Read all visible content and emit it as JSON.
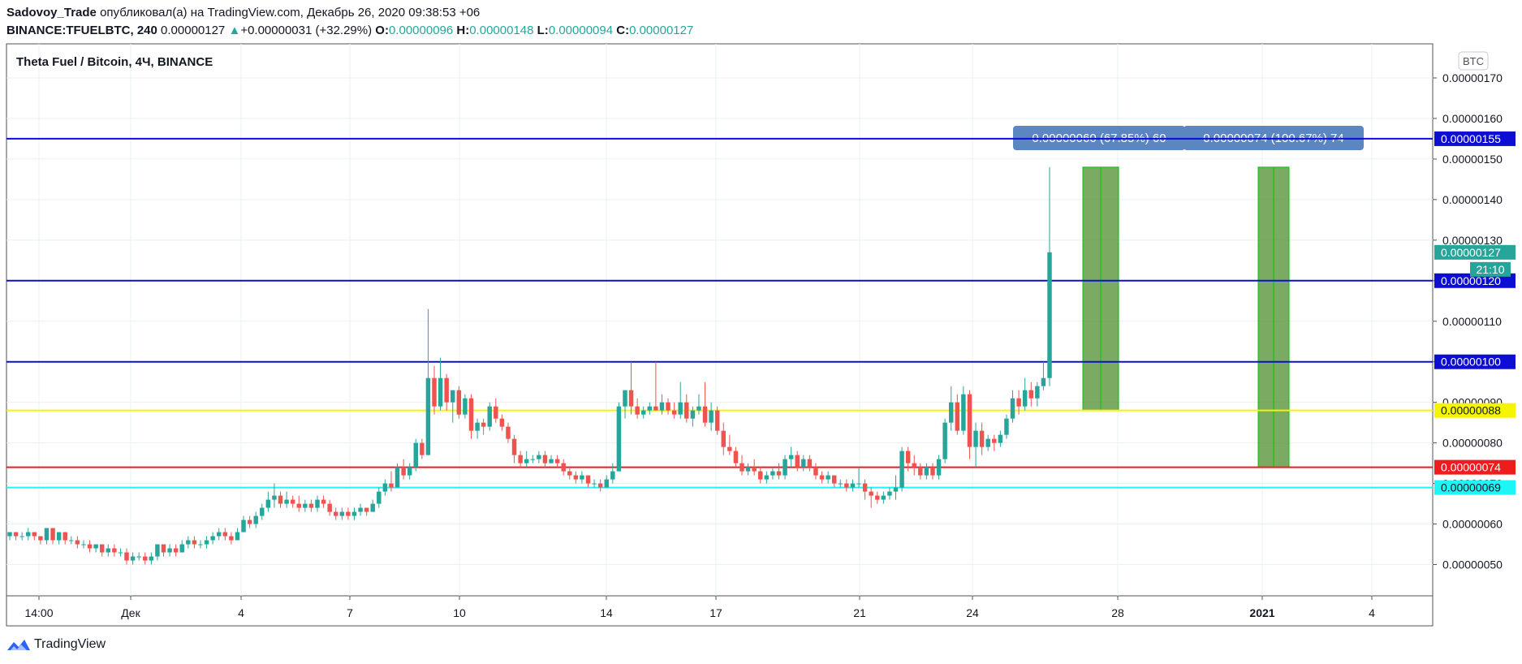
{
  "header": {
    "author": "Sadovoy_Trade",
    "published_text": "опубликовал(а) на TradingView.com, Декабрь 26, 2020 09:38:53 +06"
  },
  "ohlc": {
    "symbol": "BINANCE:TFUELBTC, 240",
    "last": "0.00000127",
    "arrow": "▲",
    "change": "+0.00000031 (+32.29%)",
    "o_label": "O:",
    "o": "0.00000096",
    "h_label": "H:",
    "h": "0.00000148",
    "l_label": "L:",
    "l": "0.00000094",
    "c_label": "C:",
    "c": "0.00000127"
  },
  "footer": {
    "brand": "TradingView"
  },
  "chart_data": {
    "type": "candlestick",
    "title": "Theta Fuel / Bitcoin, 4Ч, BINANCE",
    "currency_badge": "BTC",
    "y_axis_ticks": [
      "0.00000170",
      "0.00000160",
      "0.00000150",
      "0.00000140",
      "0.00000130",
      "0.00000120",
      "0.00000110",
      "0.00000100",
      "0.00000090",
      "0.00000080",
      "0.00000070",
      "0.00000060",
      "0.00000050"
    ],
    "y_range": [
      4.55e-07,
      1.73e-06
    ],
    "x_tick_labels": [
      "14:00",
      "Дек",
      "4",
      "7",
      "10",
      "14",
      "17",
      "21",
      "24",
      "28",
      "2021",
      "4"
    ],
    "grid": true,
    "colors": {
      "up": "#26a69a",
      "down": "#ef5350",
      "grid": "#e8f1f3"
    },
    "horizontal_levels": [
      {
        "price": 1.55e-06,
        "label": "0.00000155",
        "color": "#0d0dd4"
      },
      {
        "price": 1.2e-06,
        "label": "0.00000120",
        "color": "#0d0dd4"
      },
      {
        "price": 1e-06,
        "label": "0.00000100",
        "color": "#0d0dd4"
      },
      {
        "price": 8.8e-07,
        "label": "0.00000088",
        "color": "#f5f500"
      },
      {
        "price": 7.4e-07,
        "label": "0.00000074",
        "color": "#ee1c1c"
      },
      {
        "price": 6.9e-07,
        "label": "0.00000069",
        "color": "#1ef5f5"
      }
    ],
    "last_price": {
      "label": "0.00000127",
      "countdown": "21:10",
      "color": "#26a69a"
    },
    "measurements": [
      {
        "label": "0.00000060 (67.85%) 60",
        "from": 8.8e-07,
        "to": 1.48e-06,
        "color": "#4f8f2f"
      },
      {
        "label": "0.00000074 (100.67%) 74",
        "from": 7.4e-07,
        "to": 1.48e-06,
        "color": "#4f8f2f"
      }
    ],
    "candles": [
      [
        5.7e-07,
        5.8e-07,
        5.6e-07,
        5.8e-07
      ],
      [
        5.8e-07,
        5.8e-07,
        5.6e-07,
        5.7e-07
      ],
      [
        5.7e-07,
        5.8e-07,
        5.6e-07,
        5.7e-07
      ],
      [
        5.7e-07,
        5.9e-07,
        5.6e-07,
        5.8e-07
      ],
      [
        5.8e-07,
        5.8e-07,
        5.6e-07,
        5.7e-07
      ],
      [
        5.7e-07,
        5.7e-07,
        5.5e-07,
        5.6e-07
      ],
      [
        5.6e-07,
        5.9e-07,
        5.5e-07,
        5.9e-07
      ],
      [
        5.9e-07,
        5.9e-07,
        5.5e-07,
        5.6e-07
      ],
      [
        5.6e-07,
        5.8e-07,
        5.5e-07,
        5.8e-07
      ],
      [
        5.8e-07,
        5.8e-07,
        5.5e-07,
        5.6e-07
      ],
      [
        5.6e-07,
        5.7e-07,
        5.5e-07,
        5.6e-07
      ],
      [
        5.6e-07,
        5.7e-07,
        5.4e-07,
        5.5e-07
      ],
      [
        5.5e-07,
        5.6e-07,
        5.4e-07,
        5.5e-07
      ],
      [
        5.5e-07,
        5.6e-07,
        5.3e-07,
        5.4e-07
      ],
      [
        5.4e-07,
        5.5e-07,
        5.3e-07,
        5.5e-07
      ],
      [
        5.5e-07,
        5.5e-07,
        5.2e-07,
        5.3e-07
      ],
      [
        5.3e-07,
        5.5e-07,
        5.2e-07,
        5.4e-07
      ],
      [
        5.4e-07,
        5.5e-07,
        5.2e-07,
        5.3e-07
      ],
      [
        5.3e-07,
        5.4e-07,
        5.2e-07,
        5.3e-07
      ],
      [
        5.3e-07,
        5.4e-07,
        5e-07,
        5.1e-07
      ],
      [
        5.1e-07,
        5.3e-07,
        5e-07,
        5.2e-07
      ],
      [
        5.2e-07,
        5.3e-07,
        5.1e-07,
        5.2e-07
      ],
      [
        5.2e-07,
        5.3e-07,
        5e-07,
        5.1e-07
      ],
      [
        5.1e-07,
        5.3e-07,
        5e-07,
        5.2e-07
      ],
      [
        5.2e-07,
        5.5e-07,
        5.1e-07,
        5.5e-07
      ],
      [
        5.5e-07,
        5.5e-07,
        5.2e-07,
        5.3e-07
      ],
      [
        5.3e-07,
        5.5e-07,
        5.2e-07,
        5.4e-07
      ],
      [
        5.4e-07,
        5.5e-07,
        5.2e-07,
        5.3e-07
      ],
      [
        5.3e-07,
        5.6e-07,
        5.3e-07,
        5.5e-07
      ],
      [
        5.5e-07,
        5.7e-07,
        5.4e-07,
        5.6e-07
      ],
      [
        5.6e-07,
        5.7e-07,
        5.4e-07,
        5.5e-07
      ],
      [
        5.5e-07,
        5.6e-07,
        5.4e-07,
        5.5e-07
      ],
      [
        5.5e-07,
        5.7e-07,
        5.4e-07,
        5.6e-07
      ],
      [
        5.6e-07,
        5.8e-07,
        5.5e-07,
        5.7e-07
      ],
      [
        5.7e-07,
        5.9e-07,
        5.6e-07,
        5.8e-07
      ],
      [
        5.8e-07,
        5.9e-07,
        5.6e-07,
        5.7e-07
      ],
      [
        5.7e-07,
        5.8e-07,
        5.5e-07,
        5.6e-07
      ],
      [
        5.6e-07,
        5.9e-07,
        5.6e-07,
        5.8e-07
      ],
      [
        5.8e-07,
        6.2e-07,
        5.8e-07,
        6.1e-07
      ],
      [
        6.1e-07,
        6.2e-07,
        5.9e-07,
        6e-07
      ],
      [
        6e-07,
        6.3e-07,
        5.9e-07,
        6.2e-07
      ],
      [
        6.2e-07,
        6.5e-07,
        6.1e-07,
        6.4e-07
      ],
      [
        6.4e-07,
        6.8e-07,
        6.3e-07,
        6.6e-07
      ],
      [
        6.6e-07,
        7e-07,
        6.4e-07,
        6.7e-07
      ],
      [
        6.7e-07,
        6.8e-07,
        6.4e-07,
        6.5e-07
      ],
      [
        6.5e-07,
        6.8e-07,
        6.4e-07,
        6.6e-07
      ],
      [
        6.6e-07,
        6.7e-07,
        6.4e-07,
        6.5e-07
      ],
      [
        6.5e-07,
        6.7e-07,
        6.3e-07,
        6.4e-07
      ],
      [
        6.4e-07,
        6.6e-07,
        6.3e-07,
        6.5e-07
      ],
      [
        6.5e-07,
        6.6e-07,
        6.3e-07,
        6.4e-07
      ],
      [
        6.4e-07,
        6.7e-07,
        6.3e-07,
        6.6e-07
      ],
      [
        6.6e-07,
        6.7e-07,
        6.4e-07,
        6.5e-07
      ],
      [
        6.5e-07,
        6.6e-07,
        6.2e-07,
        6.3e-07
      ],
      [
        6.3e-07,
        6.4e-07,
        6.1e-07,
        6.2e-07
      ],
      [
        6.2e-07,
        6.4e-07,
        6.1e-07,
        6.3e-07
      ],
      [
        6.3e-07,
        6.4e-07,
        6.1e-07,
        6.2e-07
      ],
      [
        6.2e-07,
        6.4e-07,
        6.1e-07,
        6.3e-07
      ],
      [
        6.3e-07,
        6.5e-07,
        6.2e-07,
        6.4e-07
      ],
      [
        6.4e-07,
        6.4e-07,
        6.2e-07,
        6.3e-07
      ],
      [
        6.3e-07,
        6.6e-07,
        6.3e-07,
        6.5e-07
      ],
      [
        6.5e-07,
        6.9e-07,
        6.4e-07,
        6.8e-07
      ],
      [
        6.8e-07,
        7.1e-07,
        6.7e-07,
        7e-07
      ],
      [
        7e-07,
        7.3e-07,
        6.8e-07,
        6.9e-07
      ],
      [
        6.9e-07,
        7.5e-07,
        6.9e-07,
        7.4e-07
      ],
      [
        7.4e-07,
        7.6e-07,
        7.1e-07,
        7.2e-07
      ],
      [
        7.2e-07,
        7.5e-07,
        7.1e-07,
        7.4e-07
      ],
      [
        7.4e-07,
        8.1e-07,
        7.3e-07,
        8e-07
      ],
      [
        8e-07,
        8.1e-07,
        7.6e-07,
        7.7e-07
      ],
      [
        7.7e-07,
        1.13e-06,
        7.7e-07,
        9.6e-07
      ],
      [
        9.6e-07,
        9.9e-07,
        8.7e-07,
        8.9e-07
      ],
      [
        8.9e-07,
        1.01e-06,
        8.8e-07,
        9.6e-07
      ],
      [
        9.6e-07,
        9.7e-07,
        8.8e-07,
        9e-07
      ],
      [
        9e-07,
        9.3e-07,
        8.5e-07,
        9.3e-07
      ],
      [
        9.3e-07,
        9.4e-07,
        8.6e-07,
        8.7e-07
      ],
      [
        8.7e-07,
        9.2e-07,
        8.6e-07,
        9.1e-07
      ],
      [
        9.1e-07,
        9.2e-07,
        8.1e-07,
        8.3e-07
      ],
      [
        8.3e-07,
        8.6e-07,
        8.1e-07,
        8.5e-07
      ],
      [
        8.5e-07,
        8.6e-07,
        8.2e-07,
        8.4e-07
      ],
      [
        8.4e-07,
        9e-07,
        8.3e-07,
        8.9e-07
      ],
      [
        8.9e-07,
        9.1e-07,
        8.5e-07,
        8.6e-07
      ],
      [
        8.6e-07,
        8.7e-07,
        8.3e-07,
        8.4e-07
      ],
      [
        8.4e-07,
        8.5e-07,
        8e-07,
        8.1e-07
      ],
      [
        8.1e-07,
        8.2e-07,
        7.5e-07,
        7.7e-07
      ],
      [
        7.7e-07,
        7.8e-07,
        7.4e-07,
        7.5e-07
      ],
      [
        7.5e-07,
        7.8e-07,
        7.4e-07,
        7.6e-07
      ],
      [
        7.6e-07,
        7.7e-07,
        7.5e-07,
        7.6e-07
      ],
      [
        7.6e-07,
        7.8e-07,
        7.5e-07,
        7.7e-07
      ],
      [
        7.7e-07,
        7.8e-07,
        7.4e-07,
        7.5e-07
      ],
      [
        7.5e-07,
        7.7e-07,
        7.5e-07,
        7.6e-07
      ],
      [
        7.6e-07,
        7.7e-07,
        7.4e-07,
        7.5e-07
      ],
      [
        7.5e-07,
        7.6e-07,
        7.2e-07,
        7.3e-07
      ],
      [
        7.3e-07,
        7.4e-07,
        7.1e-07,
        7.2e-07
      ],
      [
        7.2e-07,
        7.3e-07,
        7e-07,
        7.1e-07
      ],
      [
        7.1e-07,
        7.3e-07,
        7e-07,
        7.2e-07
      ],
      [
        7.2e-07,
        7.2e-07,
        6.9e-07,
        7e-07
      ],
      [
        7e-07,
        7.1e-07,
        6.9e-07,
        7e-07
      ],
      [
        7e-07,
        7.1e-07,
        6.8e-07,
        6.9e-07
      ],
      [
        6.9e-07,
        7.2e-07,
        6.9e-07,
        7.1e-07
      ],
      [
        7.1e-07,
        7.5e-07,
        7e-07,
        7.3e-07
      ],
      [
        7.3e-07,
        9e-07,
        7.3e-07,
        8.9e-07
      ],
      [
        8.9e-07,
        9.3e-07,
        8.6e-07,
        9.3e-07
      ],
      [
        9.3e-07,
        1e-06,
        8.7e-07,
        8.9e-07
      ],
      [
        8.9e-07,
        9.1e-07,
        8.6e-07,
        8.7e-07
      ],
      [
        8.7e-07,
        8.9e-07,
        8.6e-07,
        8.8e-07
      ],
      [
        8.8e-07,
        9e-07,
        8.7e-07,
        8.9e-07
      ],
      [
        8.9e-07,
        1e-06,
        8.8e-07,
        8.8e-07
      ],
      [
        8.8e-07,
        9.2e-07,
        8.7e-07,
        9e-07
      ],
      [
        9e-07,
        9.1e-07,
        8.7e-07,
        8.8e-07
      ],
      [
        8.8e-07,
        9e-07,
        8.6e-07,
        8.7e-07
      ],
      [
        8.7e-07,
        9.5e-07,
        8.6e-07,
        9e-07
      ],
      [
        9e-07,
        9.2e-07,
        8.5e-07,
        8.6e-07
      ],
      [
        8.6e-07,
        8.9e-07,
        8.4e-07,
        8.8e-07
      ],
      [
        8.8e-07,
        9.2e-07,
        8.7e-07,
        8.9e-07
      ],
      [
        8.9e-07,
        9.5e-07,
        8.4e-07,
        8.5e-07
      ],
      [
        8.5e-07,
        9e-07,
        8.3e-07,
        8.8e-07
      ],
      [
        8.8e-07,
        8.9e-07,
        8.2e-07,
        8.3e-07
      ],
      [
        8.3e-07,
        8.5e-07,
        7.7e-07,
        7.9e-07
      ],
      [
        7.9e-07,
        8.2e-07,
        7.7e-07,
        7.8e-07
      ],
      [
        7.8e-07,
        7.9e-07,
        7.4e-07,
        7.5e-07
      ],
      [
        7.5e-07,
        7.7e-07,
        7.2e-07,
        7.3e-07
      ],
      [
        7.3e-07,
        7.5e-07,
        7.2e-07,
        7.4e-07
      ],
      [
        7.4e-07,
        7.6e-07,
        7.2e-07,
        7.3e-07
      ],
      [
        7.3e-07,
        7.4e-07,
        7e-07,
        7.1e-07
      ],
      [
        7.1e-07,
        7.3e-07,
        7e-07,
        7.2e-07
      ],
      [
        7.2e-07,
        7.4e-07,
        7.1e-07,
        7.3e-07
      ],
      [
        7.3e-07,
        7.5e-07,
        7.1e-07,
        7.2e-07
      ],
      [
        7.2e-07,
        7.7e-07,
        7.1e-07,
        7.6e-07
      ],
      [
        7.6e-07,
        7.9e-07,
        7.4e-07,
        7.7e-07
      ],
      [
        7.7e-07,
        7.8e-07,
        7.3e-07,
        7.4e-07
      ],
      [
        7.4e-07,
        7.7e-07,
        7.3e-07,
        7.6e-07
      ],
      [
        7.6e-07,
        7.7e-07,
        7.3e-07,
        7.4e-07
      ],
      [
        7.4e-07,
        7.5e-07,
        7.1e-07,
        7.2e-07
      ],
      [
        7.2e-07,
        7.3e-07,
        7e-07,
        7.1e-07
      ],
      [
        7.1e-07,
        7.3e-07,
        7e-07,
        7.2e-07
      ],
      [
        7.2e-07,
        7.2e-07,
        6.9e-07,
        7e-07
      ],
      [
        7e-07,
        7.1e-07,
        6.9e-07,
        7e-07
      ],
      [
        7e-07,
        7.1e-07,
        6.8e-07,
        6.9e-07
      ],
      [
        6.9e-07,
        7.1e-07,
        6.8e-07,
        7e-07
      ],
      [
        7e-07,
        7.4e-07,
        6.9e-07,
        7e-07
      ],
      [
        7e-07,
        7.1e-07,
        6.6e-07,
        6.8e-07
      ],
      [
        6.8e-07,
        6.9e-07,
        6.4e-07,
        6.7e-07
      ],
      [
        6.7e-07,
        6.8e-07,
        6.5e-07,
        6.6e-07
      ],
      [
        6.6e-07,
        6.8e-07,
        6.5e-07,
        6.7e-07
      ],
      [
        6.7e-07,
        6.9e-07,
        6.6e-07,
        6.8e-07
      ],
      [
        6.8e-07,
        7.2e-07,
        6.6e-07,
        6.9e-07
      ],
      [
        6.9e-07,
        7.9e-07,
        6.8e-07,
        7.8e-07
      ],
      [
        7.8e-07,
        7.9e-07,
        7.3e-07,
        7.5e-07
      ],
      [
        7.5e-07,
        7.7e-07,
        7.2e-07,
        7.4e-07
      ],
      [
        7.4e-07,
        7.5e-07,
        7.1e-07,
        7.2e-07
      ],
      [
        7.2e-07,
        7.5e-07,
        7.1e-07,
        7.4e-07
      ],
      [
        7.4e-07,
        7.5e-07,
        7.1e-07,
        7.2e-07
      ],
      [
        7.2e-07,
        7.7e-07,
        7.1e-07,
        7.6e-07
      ],
      [
        7.6e-07,
        8.6e-07,
        7.5e-07,
        8.5e-07
      ],
      [
        8.5e-07,
        9.4e-07,
        8.3e-07,
        9e-07
      ],
      [
        9e-07,
        9.2e-07,
        8.2e-07,
        8.3e-07
      ],
      [
        8.3e-07,
        9.4e-07,
        8.2e-07,
        9.2e-07
      ],
      [
        9.2e-07,
        9.3e-07,
        7.6e-07,
        7.9e-07
      ],
      [
        7.9e-07,
        8.5e-07,
        7.4e-07,
        8.3e-07
      ],
      [
        8.3e-07,
        8.5e-07,
        7.7e-07,
        7.9e-07
      ],
      [
        7.9e-07,
        8.2e-07,
        7.8e-07,
        8.1e-07
      ],
      [
        8.1e-07,
        8.2e-07,
        7.8e-07,
        8e-07
      ],
      [
        8e-07,
        8.3e-07,
        7.9e-07,
        8.2e-07
      ],
      [
        8.2e-07,
        8.7e-07,
        8.1e-07,
        8.6e-07
      ],
      [
        8.6e-07,
        9.3e-07,
        8.5e-07,
        9.1e-07
      ],
      [
        9.1e-07,
        9.3e-07,
        8.7e-07,
        8.9e-07
      ],
      [
        8.9e-07,
        9.6e-07,
        8.8e-07,
        9.3e-07
      ],
      [
        9.3e-07,
        9.5e-07,
        8.9e-07,
        9.1e-07
      ],
      [
        9.1e-07,
        9.5e-07,
        8.9e-07,
        9.4e-07
      ],
      [
        9.4e-07,
        1e-06,
        9.3e-07,
        9.6e-07
      ],
      [
        9.6e-07,
        1.48e-06,
        9.4e-07,
        1.27e-06
      ]
    ]
  }
}
